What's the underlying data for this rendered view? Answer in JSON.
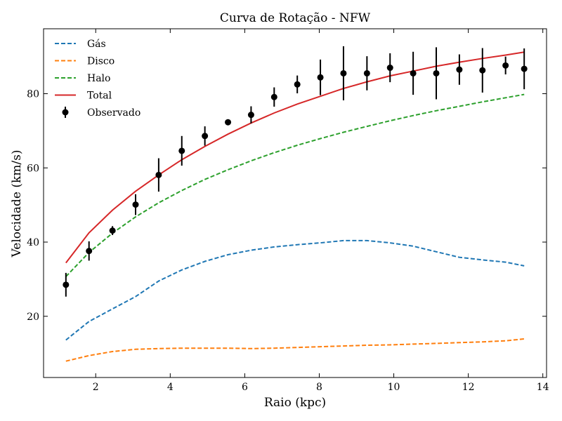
{
  "chart_data": {
    "type": "line",
    "title": "Curva de Rotação - NFW",
    "xlabel": "Raio (kpc)",
    "ylabel": "Velocidade (km/s)",
    "xlim": [
      0.6,
      14.1
    ],
    "ylim": [
      3.5,
      97.5
    ],
    "xticks": [
      2,
      4,
      6,
      8,
      10,
      12,
      14
    ],
    "yticks": [
      20,
      40,
      60,
      80
    ],
    "grid": false,
    "legend_position": "top-left",
    "x": [
      1.2,
      1.82,
      2.45,
      3.07,
      3.69,
      4.31,
      4.93,
      5.55,
      6.17,
      6.79,
      7.41,
      8.03,
      8.65,
      9.28,
      9.9,
      10.52,
      11.14,
      11.76,
      12.38,
      13.0,
      13.5
    ],
    "series": [
      {
        "name": "Gás",
        "style": "dashed",
        "color": "#1f77b4",
        "values": [
          13.6,
          18.6,
          22.0,
          25.3,
          29.5,
          32.5,
          34.8,
          36.6,
          37.8,
          38.7,
          39.3,
          39.8,
          40.4,
          40.4,
          39.8,
          38.9,
          37.4,
          35.9,
          35.2,
          34.6,
          33.6
        ]
      },
      {
        "name": "Disco",
        "style": "dashed",
        "color": "#ff7f0e",
        "values": [
          7.9,
          9.4,
          10.5,
          11.1,
          11.3,
          11.4,
          11.4,
          11.4,
          11.3,
          11.4,
          11.6,
          11.8,
          12.0,
          12.2,
          12.3,
          12.5,
          12.7,
          12.9,
          13.1,
          13.4,
          13.9
        ]
      },
      {
        "name": "Halo",
        "style": "dashed",
        "color": "#2ca02c",
        "values": [
          30.7,
          37.2,
          42.4,
          46.8,
          50.6,
          53.9,
          56.9,
          59.5,
          61.9,
          64.1,
          66.1,
          67.9,
          69.6,
          71.2,
          72.7,
          74.1,
          75.4,
          76.6,
          77.8,
          78.9,
          79.8
        ]
      },
      {
        "name": "Total",
        "style": "solid",
        "color": "#d62728",
        "values": [
          34.4,
          42.5,
          48.6,
          53.7,
          58.1,
          62.2,
          65.8,
          69.1,
          72.1,
          74.8,
          77.2,
          79.3,
          81.4,
          83.2,
          84.8,
          86.1,
          87.4,
          88.5,
          89.5,
          90.4,
          91.2
        ]
      }
    ],
    "observed": {
      "name": "Observado",
      "color": "#000000",
      "x": [
        1.2,
        1.82,
        2.45,
        3.07,
        3.69,
        4.31,
        4.93,
        5.55,
        6.17,
        6.79,
        7.41,
        8.03,
        8.65,
        9.28,
        9.9,
        10.52,
        11.14,
        11.76,
        12.38,
        13.0,
        13.5
      ],
      "y": [
        28.5,
        37.6,
        43.1,
        50.1,
        58.1,
        64.6,
        68.6,
        72.3,
        74.3,
        79.1,
        82.5,
        84.4,
        85.5,
        85.5,
        87.0,
        85.5,
        85.5,
        86.5,
        86.3,
        87.6,
        86.7
      ],
      "err": [
        3.2,
        2.6,
        1.2,
        2.8,
        4.5,
        4.0,
        2.6,
        0.8,
        2.3,
        2.6,
        2.4,
        4.8,
        7.3,
        4.6,
        3.9,
        5.8,
        7.0,
        4.1,
        6.0,
        2.4,
        5.5
      ]
    }
  }
}
